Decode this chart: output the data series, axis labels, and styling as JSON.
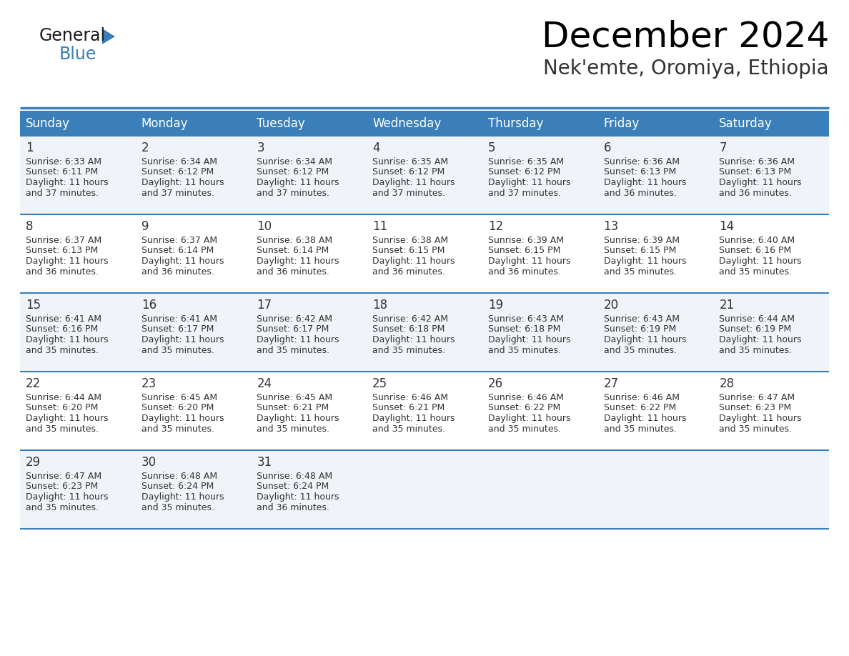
{
  "title": "December 2024",
  "subtitle": "Nek'emte, Oromiya, Ethiopia",
  "header_bg_color": "#3a7fba",
  "header_text_color": "#FFFFFF",
  "days_of_week": [
    "Sunday",
    "Monday",
    "Tuesday",
    "Wednesday",
    "Thursday",
    "Friday",
    "Saturday"
  ],
  "row_bg_colors": [
    "#f0f4f8",
    "#FFFFFF"
  ],
  "divider_color": "#3a7fba",
  "text_color": "#333333",
  "calendar_data": [
    [
      {
        "day": 1,
        "sunrise": "6:33 AM",
        "sunset": "6:11 PM",
        "daylight": "11 hours and 37 minutes."
      },
      {
        "day": 2,
        "sunrise": "6:34 AM",
        "sunset": "6:12 PM",
        "daylight": "11 hours and 37 minutes."
      },
      {
        "day": 3,
        "sunrise": "6:34 AM",
        "sunset": "6:12 PM",
        "daylight": "11 hours and 37 minutes."
      },
      {
        "day": 4,
        "sunrise": "6:35 AM",
        "sunset": "6:12 PM",
        "daylight": "11 hours and 37 minutes."
      },
      {
        "day": 5,
        "sunrise": "6:35 AM",
        "sunset": "6:12 PM",
        "daylight": "11 hours and 37 minutes."
      },
      {
        "day": 6,
        "sunrise": "6:36 AM",
        "sunset": "6:13 PM",
        "daylight": "11 hours and 36 minutes."
      },
      {
        "day": 7,
        "sunrise": "6:36 AM",
        "sunset": "6:13 PM",
        "daylight": "11 hours and 36 minutes."
      }
    ],
    [
      {
        "day": 8,
        "sunrise": "6:37 AM",
        "sunset": "6:13 PM",
        "daylight": "11 hours and 36 minutes."
      },
      {
        "day": 9,
        "sunrise": "6:37 AM",
        "sunset": "6:14 PM",
        "daylight": "11 hours and 36 minutes."
      },
      {
        "day": 10,
        "sunrise": "6:38 AM",
        "sunset": "6:14 PM",
        "daylight": "11 hours and 36 minutes."
      },
      {
        "day": 11,
        "sunrise": "6:38 AM",
        "sunset": "6:15 PM",
        "daylight": "11 hours and 36 minutes."
      },
      {
        "day": 12,
        "sunrise": "6:39 AM",
        "sunset": "6:15 PM",
        "daylight": "11 hours and 36 minutes."
      },
      {
        "day": 13,
        "sunrise": "6:39 AM",
        "sunset": "6:15 PM",
        "daylight": "11 hours and 35 minutes."
      },
      {
        "day": 14,
        "sunrise": "6:40 AM",
        "sunset": "6:16 PM",
        "daylight": "11 hours and 35 minutes."
      }
    ],
    [
      {
        "day": 15,
        "sunrise": "6:41 AM",
        "sunset": "6:16 PM",
        "daylight": "11 hours and 35 minutes."
      },
      {
        "day": 16,
        "sunrise": "6:41 AM",
        "sunset": "6:17 PM",
        "daylight": "11 hours and 35 minutes."
      },
      {
        "day": 17,
        "sunrise": "6:42 AM",
        "sunset": "6:17 PM",
        "daylight": "11 hours and 35 minutes."
      },
      {
        "day": 18,
        "sunrise": "6:42 AM",
        "sunset": "6:18 PM",
        "daylight": "11 hours and 35 minutes."
      },
      {
        "day": 19,
        "sunrise": "6:43 AM",
        "sunset": "6:18 PM",
        "daylight": "11 hours and 35 minutes."
      },
      {
        "day": 20,
        "sunrise": "6:43 AM",
        "sunset": "6:19 PM",
        "daylight": "11 hours and 35 minutes."
      },
      {
        "day": 21,
        "sunrise": "6:44 AM",
        "sunset": "6:19 PM",
        "daylight": "11 hours and 35 minutes."
      }
    ],
    [
      {
        "day": 22,
        "sunrise": "6:44 AM",
        "sunset": "6:20 PM",
        "daylight": "11 hours and 35 minutes."
      },
      {
        "day": 23,
        "sunrise": "6:45 AM",
        "sunset": "6:20 PM",
        "daylight": "11 hours and 35 minutes."
      },
      {
        "day": 24,
        "sunrise": "6:45 AM",
        "sunset": "6:21 PM",
        "daylight": "11 hours and 35 minutes."
      },
      {
        "day": 25,
        "sunrise": "6:46 AM",
        "sunset": "6:21 PM",
        "daylight": "11 hours and 35 minutes."
      },
      {
        "day": 26,
        "sunrise": "6:46 AM",
        "sunset": "6:22 PM",
        "daylight": "11 hours and 35 minutes."
      },
      {
        "day": 27,
        "sunrise": "6:46 AM",
        "sunset": "6:22 PM",
        "daylight": "11 hours and 35 minutes."
      },
      {
        "day": 28,
        "sunrise": "6:47 AM",
        "sunset": "6:23 PM",
        "daylight": "11 hours and 35 minutes."
      }
    ],
    [
      {
        "day": 29,
        "sunrise": "6:47 AM",
        "sunset": "6:23 PM",
        "daylight": "11 hours and 35 minutes."
      },
      {
        "day": 30,
        "sunrise": "6:48 AM",
        "sunset": "6:24 PM",
        "daylight": "11 hours and 35 minutes."
      },
      {
        "day": 31,
        "sunrise": "6:48 AM",
        "sunset": "6:24 PM",
        "daylight": "11 hours and 36 minutes."
      },
      null,
      null,
      null,
      null
    ]
  ],
  "fig_width": 11.88,
  "fig_height": 9.18,
  "dpi": 100
}
